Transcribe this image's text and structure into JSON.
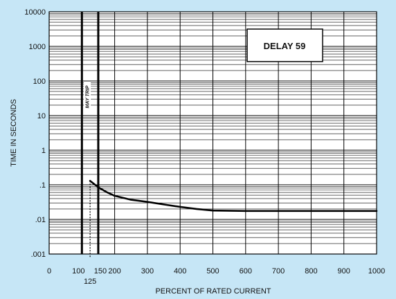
{
  "chart_data": {
    "type": "line",
    "label_box": "DELAY 59",
    "xlabel": "PERCENT OF RATED CURRENT",
    "ylabel": "TIME IN SECONDS",
    "xlim": [
      0,
      1000
    ],
    "ylim": [
      0.001,
      10000
    ],
    "y_scale": "log",
    "x_ticks": [
      "0",
      "100",
      "150",
      "200",
      "300",
      "400",
      "500",
      "600",
      "700",
      "800",
      "900",
      "1000"
    ],
    "x_ticks_secondary": [
      "125"
    ],
    "y_ticks": [
      "10000",
      "1000",
      "100",
      "10",
      "1",
      ".1",
      ".01",
      ".001"
    ],
    "grid": true,
    "band_annotation": "MAY TRIP",
    "band_lines": [
      100,
      150
    ],
    "marker_line": 125,
    "series": [
      {
        "x": [
          125,
          150,
          175,
          200,
          250,
          300,
          350,
          400,
          450,
          500,
          600,
          700,
          800,
          900,
          1000
        ],
        "y": [
          0.13,
          0.085,
          0.062,
          0.048,
          0.037,
          0.032,
          0.027,
          0.023,
          0.02,
          0.018,
          0.0175,
          0.0175,
          0.0175,
          0.0175,
          0.0175
        ]
      }
    ]
  }
}
